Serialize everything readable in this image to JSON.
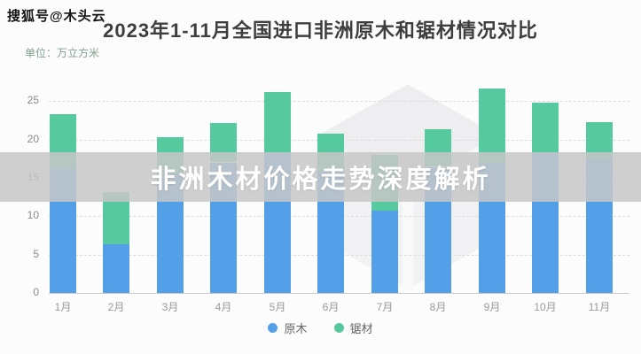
{
  "header": {
    "account_badge": "搜狐号@木头云",
    "title": "2023年1-11月全国进口非洲原木和锯材情况对比",
    "unit_label": "单位：万立方米"
  },
  "overlay_caption": {
    "text": "非洲木材价格走势深度解析",
    "bg_color": "#c7c7c7",
    "text_color": "#ffffff"
  },
  "watermark": {
    "icon": "mutouyun-cube-logo",
    "color": "#e9e9ec"
  },
  "chart_data": {
    "type": "bar",
    "stacked": true,
    "title": "2023年1-11月全国进口非洲原木和锯材情况对比",
    "unit": "万立方米",
    "categories": [
      "1月",
      "2月",
      "3月",
      "4月",
      "5月",
      "6月",
      "7月",
      "8月",
      "9月",
      "10月",
      "11月"
    ],
    "series": [
      {
        "name": "原木",
        "color": "#54a0e8",
        "values": [
          16.2,
          6.3,
          15.4,
          17.0,
          18.2,
          15.8,
          10.7,
          16.4,
          16.9,
          18.1,
          17.3
        ]
      },
      {
        "name": "锯材",
        "color": "#57c99e",
        "values": [
          7.1,
          6.8,
          4.9,
          5.1,
          8.0,
          5.0,
          7.3,
          4.9,
          9.7,
          6.7,
          5.0
        ]
      }
    ],
    "stack_totals": [
      23.3,
      13.1,
      20.3,
      22.1,
      26.2,
      20.8,
      18.0,
      21.3,
      26.6,
      24.8,
      22.3
    ],
    "y_ticks": [
      0,
      5,
      10,
      15,
      20,
      25
    ],
    "ylim": [
      0,
      27
    ],
    "grid": "horizontal-dashed",
    "legend_position": "bottom",
    "axis_text_color": "#8a8a8a"
  },
  "legend": {
    "items": [
      {
        "label": "原木",
        "color": "#54a0e8"
      },
      {
        "label": "锯材",
        "color": "#57c99e"
      }
    ]
  }
}
